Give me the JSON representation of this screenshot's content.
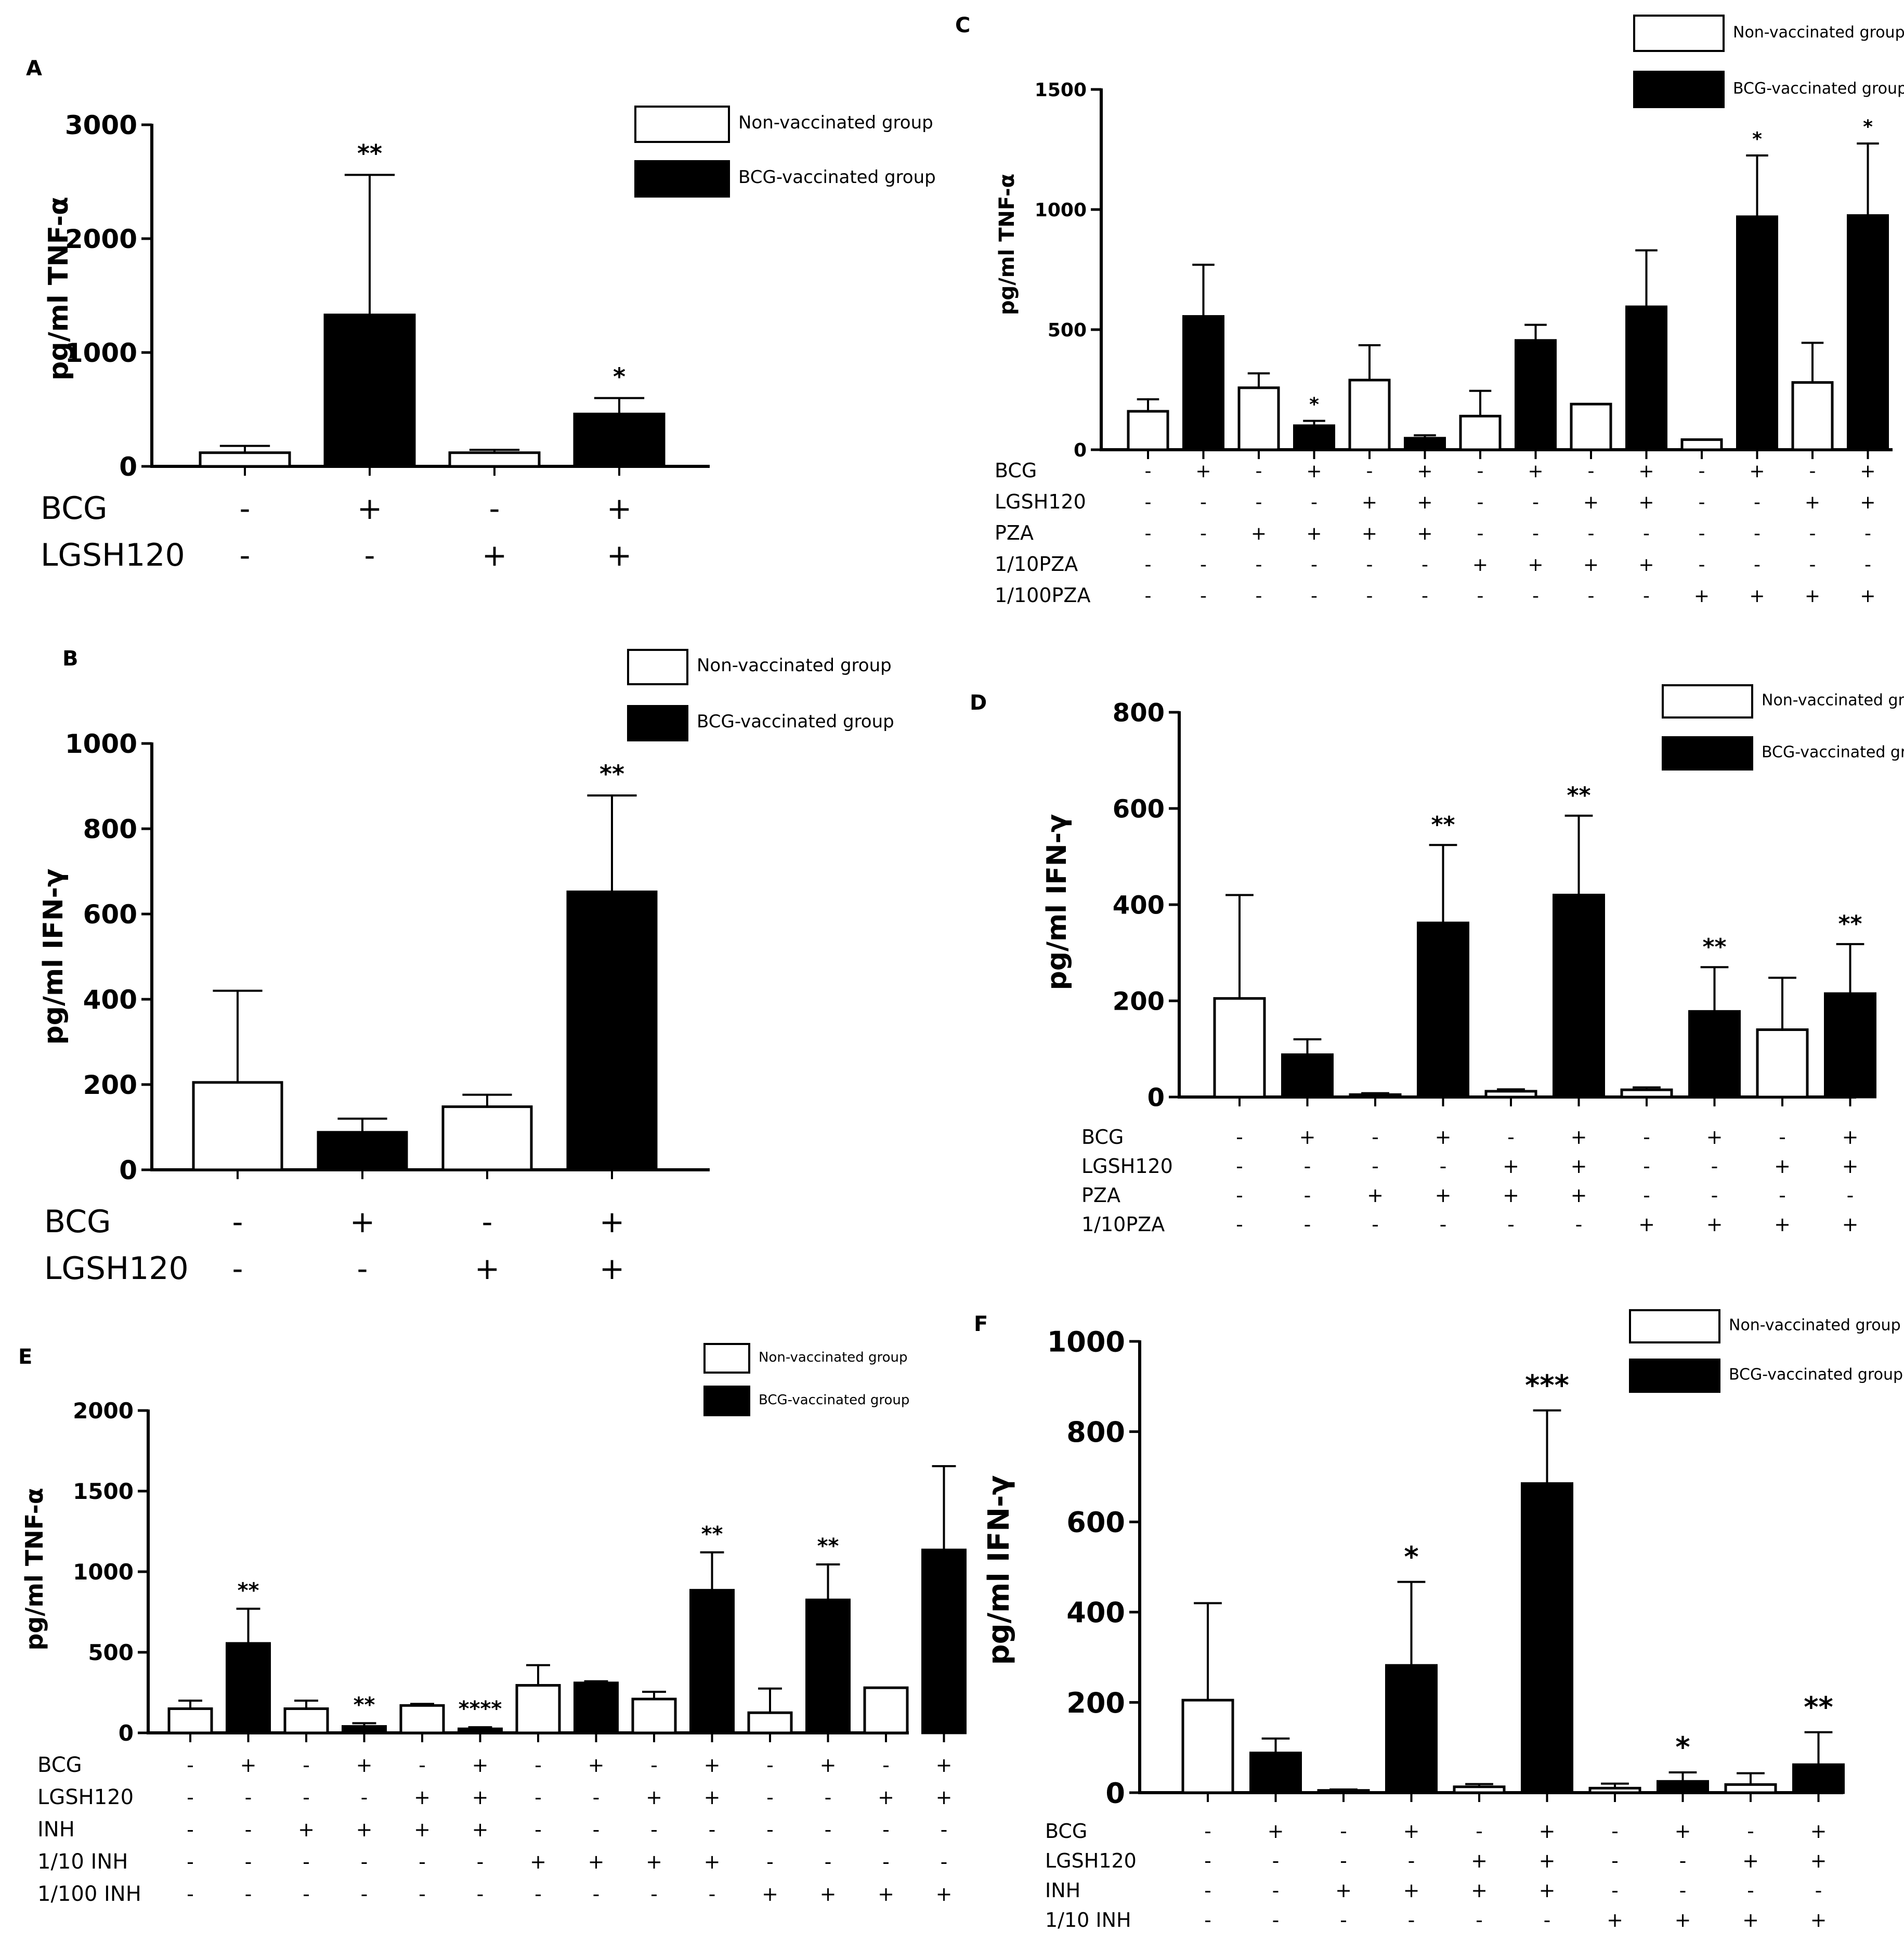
{
  "legend": {
    "non_vaccinated": "Non-vaccinated group",
    "bcg_vaccinated": "BCG-vaccinated group"
  },
  "colors": {
    "non_vaccinated": "#ffffff",
    "bcg_vaccinated": "#000000",
    "axis": "#000000"
  },
  "chart_data": [
    {
      "id": "A",
      "type": "bar",
      "ylabel": "pg/ml TNF-α",
      "ylim": [
        0,
        3000
      ],
      "yticks": [
        0,
        1000,
        2000,
        3000
      ],
      "bars": [
        {
          "group": "non",
          "value": 120,
          "err": 60,
          "sig": ""
        },
        {
          "group": "bcg",
          "value": 1330,
          "err": 1230,
          "sig": "**"
        },
        {
          "group": "non",
          "value": 120,
          "err": 25,
          "sig": ""
        },
        {
          "group": "bcg",
          "value": 460,
          "err": 140,
          "sig": "*"
        }
      ],
      "factors": [
        {
          "label": "BCG",
          "signs": [
            "-",
            "+",
            "-",
            "+"
          ]
        },
        {
          "label": "LGSH120",
          "signs": [
            "-",
            "-",
            "+",
            "+"
          ]
        }
      ]
    },
    {
      "id": "B",
      "type": "bar",
      "ylabel": "pg/ml IFN-γ",
      "ylim": [
        0,
        1000
      ],
      "yticks": [
        0,
        200,
        400,
        600,
        800,
        1000
      ],
      "bars": [
        {
          "group": "non",
          "value": 205,
          "err": 215,
          "sig": ""
        },
        {
          "group": "bcg",
          "value": 88,
          "err": 32,
          "sig": ""
        },
        {
          "group": "non",
          "value": 148,
          "err": 28,
          "sig": ""
        },
        {
          "group": "bcg",
          "value": 652,
          "err": 226,
          "sig": "**"
        }
      ],
      "factors": [
        {
          "label": "BCG",
          "signs": [
            "-",
            "+",
            "-",
            "+"
          ]
        },
        {
          "label": "LGSH120",
          "signs": [
            "-",
            "-",
            "+",
            "+"
          ]
        }
      ]
    },
    {
      "id": "C",
      "type": "bar",
      "ylabel": "pg/ml TNF-α",
      "ylim": [
        0,
        1500
      ],
      "yticks": [
        0,
        500,
        1000,
        1500
      ],
      "bars": [
        {
          "group": "non",
          "value": 160,
          "err": 50,
          "sig": ""
        },
        {
          "group": "bcg",
          "value": 555,
          "err": 215,
          "sig": ""
        },
        {
          "group": "non",
          "value": 258,
          "err": 60,
          "sig": ""
        },
        {
          "group": "bcg",
          "value": 100,
          "err": 20,
          "sig": "*"
        },
        {
          "group": "non",
          "value": 290,
          "err": 145,
          "sig": ""
        },
        {
          "group": "bcg",
          "value": 48,
          "err": 12,
          "sig": ""
        },
        {
          "group": "non",
          "value": 140,
          "err": 105,
          "sig": ""
        },
        {
          "group": "bcg",
          "value": 455,
          "err": 65,
          "sig": ""
        },
        {
          "group": "non",
          "value": 190,
          "err": 0,
          "sig": ""
        },
        {
          "group": "bcg",
          "value": 595,
          "err": 235,
          "sig": ""
        },
        {
          "group": "non",
          "value": 42,
          "err": 0,
          "sig": ""
        },
        {
          "group": "bcg",
          "value": 970,
          "err": 255,
          "sig": "*"
        },
        {
          "group": "non",
          "value": 280,
          "err": 165,
          "sig": ""
        },
        {
          "group": "bcg",
          "value": 975,
          "err": 300,
          "sig": "*"
        }
      ],
      "factors": [
        {
          "label": "BCG",
          "signs": [
            "-",
            "+",
            "-",
            "+",
            "-",
            "+",
            "-",
            "+",
            "-",
            "+",
            "-",
            "+",
            "-",
            "+"
          ]
        },
        {
          "label": "LGSH120",
          "signs": [
            "-",
            "-",
            "-",
            "-",
            "+",
            "+",
            "-",
            "-",
            "+",
            "+",
            "-",
            "-",
            "+",
            "+"
          ]
        },
        {
          "label": "PZA",
          "signs": [
            "-",
            "-",
            "+",
            "+",
            "+",
            "+",
            "-",
            "-",
            "-",
            "-",
            "-",
            "-",
            "-",
            "-"
          ]
        },
        {
          "label": "1/10PZA",
          "signs": [
            "-",
            "-",
            "-",
            "-",
            "-",
            "-",
            "+",
            "+",
            "+",
            "+",
            "-",
            "-",
            "-",
            "-"
          ]
        },
        {
          "label": "1/100PZA",
          "signs": [
            "-",
            "-",
            "-",
            "-",
            "-",
            "-",
            "-",
            "-",
            "-",
            "-",
            "+",
            "+",
            "+",
            "+"
          ]
        }
      ]
    },
    {
      "id": "D",
      "type": "bar",
      "ylabel": "pg/ml IFN-γ",
      "ylim": [
        0,
        800
      ],
      "yticks": [
        0,
        200,
        400,
        600,
        800
      ],
      "bars": [
        {
          "group": "non",
          "value": 205,
          "err": 215,
          "sig": ""
        },
        {
          "group": "bcg",
          "value": 88,
          "err": 32,
          "sig": ""
        },
        {
          "group": "non",
          "value": 5,
          "err": 3,
          "sig": ""
        },
        {
          "group": "bcg",
          "value": 362,
          "err": 162,
          "sig": "**"
        },
        {
          "group": "non",
          "value": 12,
          "err": 4,
          "sig": ""
        },
        {
          "group": "bcg",
          "value": 420,
          "err": 165,
          "sig": "**"
        },
        {
          "group": "non",
          "value": 15,
          "err": 5,
          "sig": ""
        },
        {
          "group": "bcg",
          "value": 178,
          "err": 92,
          "sig": "**"
        },
        {
          "group": "non",
          "value": 140,
          "err": 108,
          "sig": ""
        },
        {
          "group": "bcg",
          "value": 215,
          "err": 103,
          "sig": "**"
        }
      ],
      "factors": [
        {
          "label": "BCG",
          "signs": [
            "-",
            "+",
            "-",
            "+",
            "-",
            "+",
            "-",
            "+",
            "-",
            "+"
          ]
        },
        {
          "label": "LGSH120",
          "signs": [
            "-",
            "-",
            "-",
            "-",
            "+",
            "+",
            "-",
            "-",
            "+",
            "+"
          ]
        },
        {
          "label": "PZA",
          "signs": [
            "-",
            "-",
            "+",
            "+",
            "+",
            "+",
            "-",
            "-",
            "-",
            "-"
          ]
        },
        {
          "label": "1/10PZA",
          "signs": [
            "-",
            "-",
            "-",
            "-",
            "-",
            "-",
            "+",
            "+",
            "+",
            "+"
          ]
        }
      ]
    },
    {
      "id": "E",
      "type": "bar",
      "ylabel": "pg/ml TNF-α",
      "ylim": [
        0,
        2000
      ],
      "yticks": [
        0,
        500,
        1000,
        1500,
        2000
      ],
      "bars": [
        {
          "group": "non",
          "value": 150,
          "err": 50,
          "sig": ""
        },
        {
          "group": "bcg",
          "value": 555,
          "err": 215,
          "sig": "**"
        },
        {
          "group": "non",
          "value": 150,
          "err": 50,
          "sig": ""
        },
        {
          "group": "bcg",
          "value": 40,
          "err": 20,
          "sig": "**"
        },
        {
          "group": "non",
          "value": 170,
          "err": 10,
          "sig": ""
        },
        {
          "group": "bcg",
          "value": 25,
          "err": 10,
          "sig": "****"
        },
        {
          "group": "non",
          "value": 295,
          "err": 125,
          "sig": ""
        },
        {
          "group": "bcg",
          "value": 310,
          "err": 10,
          "sig": ""
        },
        {
          "group": "non",
          "value": 210,
          "err": 45,
          "sig": ""
        },
        {
          "group": "bcg",
          "value": 885,
          "err": 235,
          "sig": "**"
        },
        {
          "group": "non",
          "value": 125,
          "err": 150,
          "sig": ""
        },
        {
          "group": "bcg",
          "value": 825,
          "err": 220,
          "sig": "**"
        },
        {
          "group": "non",
          "value": 280,
          "err": 0,
          "sig": ""
        },
        {
          "group": "bcg",
          "value": 1135,
          "err": 520,
          "sig": ""
        }
      ],
      "factors": [
        {
          "label": "BCG",
          "signs": [
            "-",
            "+",
            "-",
            "+",
            "-",
            "+",
            "-",
            "+",
            "-",
            "+",
            "-",
            "+",
            "-",
            "+"
          ]
        },
        {
          "label": "LGSH120",
          "signs": [
            "-",
            "-",
            "-",
            "-",
            "+",
            "+",
            "-",
            "-",
            "+",
            "+",
            "-",
            "-",
            "+",
            "+"
          ]
        },
        {
          "label": "INH",
          "signs": [
            "-",
            "-",
            "+",
            "+",
            "+",
            "+",
            "-",
            "-",
            "-",
            "-",
            "-",
            "-",
            "-",
            "-"
          ]
        },
        {
          "label": "1/10 INH",
          "signs": [
            "-",
            "-",
            "-",
            "-",
            "-",
            "-",
            "+",
            "+",
            "+",
            "+",
            "-",
            "-",
            "-",
            "-"
          ]
        },
        {
          "label": "1/100 INH",
          "signs": [
            "-",
            "-",
            "-",
            "-",
            "-",
            "-",
            "-",
            "-",
            "-",
            "-",
            "+",
            "+",
            "+",
            "+"
          ]
        }
      ]
    },
    {
      "id": "F",
      "type": "bar",
      "ylabel": "pg/ml IFN-γ",
      "ylim": [
        0,
        1000
      ],
      "yticks": [
        0,
        200,
        400,
        600,
        800,
        1000
      ],
      "bars": [
        {
          "group": "non",
          "value": 205,
          "err": 215,
          "sig": ""
        },
        {
          "group": "bcg",
          "value": 88,
          "err": 32,
          "sig": ""
        },
        {
          "group": "non",
          "value": 5,
          "err": 2,
          "sig": ""
        },
        {
          "group": "bcg",
          "value": 282,
          "err": 185,
          "sig": "*"
        },
        {
          "group": "non",
          "value": 13,
          "err": 6,
          "sig": ""
        },
        {
          "group": "bcg",
          "value": 685,
          "err": 162,
          "sig": "***"
        },
        {
          "group": "non",
          "value": 10,
          "err": 10,
          "sig": ""
        },
        {
          "group": "bcg",
          "value": 25,
          "err": 20,
          "sig": "*"
        },
        {
          "group": "non",
          "value": 18,
          "err": 25,
          "sig": ""
        },
        {
          "group": "bcg",
          "value": 62,
          "err": 72,
          "sig": "**"
        }
      ],
      "factors": [
        {
          "label": "BCG",
          "signs": [
            "-",
            "+",
            "-",
            "+",
            "-",
            "+",
            "-",
            "+",
            "-",
            "+"
          ]
        },
        {
          "label": "LGSH120",
          "signs": [
            "-",
            "-",
            "-",
            "-",
            "+",
            "+",
            "-",
            "-",
            "+",
            "+"
          ]
        },
        {
          "label": "INH",
          "signs": [
            "-",
            "-",
            "+",
            "+",
            "+",
            "+",
            "-",
            "-",
            "-",
            "-"
          ]
        },
        {
          "label": "1/10 INH",
          "signs": [
            "-",
            "-",
            "-",
            "-",
            "-",
            "-",
            "+",
            "+",
            "+",
            "+"
          ]
        }
      ]
    }
  ]
}
